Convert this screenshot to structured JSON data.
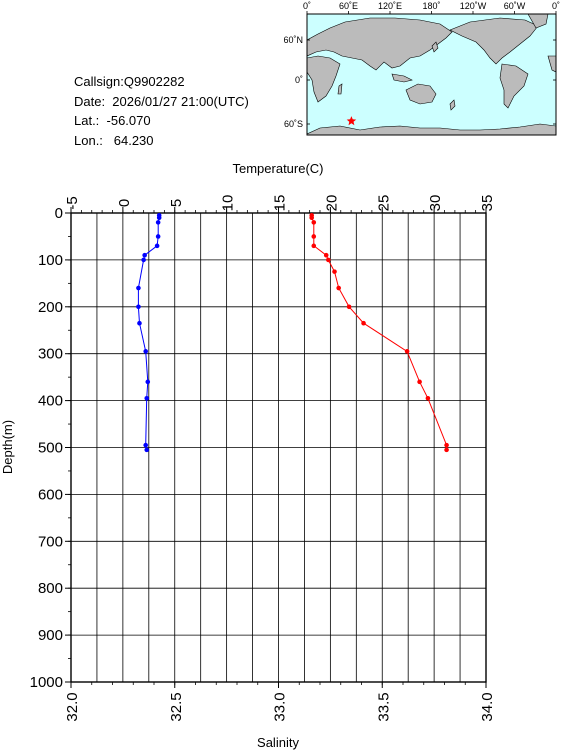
{
  "info": {
    "callsign": "Callsign:Q9902282",
    "date": "Date:  2026/01/27 21:00(UTC)",
    "lat": "Lat.:  -56.070",
    "lon": "Lon.:   64.230"
  },
  "map": {
    "top_labels": [
      "0˚",
      "60˚E",
      "120˚E",
      "180˚",
      "120˚W",
      "60˚W",
      "0˚"
    ],
    "side_labels": [
      "60˚N",
      "0˚",
      "60˚S"
    ],
    "ocean_color": "#ccffff",
    "land_color": "#bbbbbb",
    "marker": {
      "lat": -56.07,
      "lon": 64.23,
      "symbol": "star",
      "color": "#ff0000"
    }
  },
  "chart_data": {
    "type": "line",
    "top_axis": {
      "label": "Temperature(C)",
      "range": [
        -5,
        35
      ],
      "ticks": [
        "-5",
        "0",
        "5",
        "10",
        "15",
        "20",
        "25",
        "30",
        "35"
      ]
    },
    "bottom_axis": {
      "label": "Salinity",
      "range": [
        32.0,
        34.0
      ],
      "ticks": [
        "32.0",
        "32.5",
        "33.0",
        "33.5",
        "34.0"
      ]
    },
    "y_axis": {
      "label": "Depth(m)",
      "range": [
        0,
        1000
      ],
      "inverted": true,
      "ticks": [
        "0",
        "100",
        "200",
        "300",
        "400",
        "500",
        "600",
        "700",
        "800",
        "900",
        "1000"
      ]
    },
    "grid": true,
    "series": [
      {
        "axis": "top",
        "color": "#0000ff",
        "points": [
          [
            3.5,
            5
          ],
          [
            3.5,
            10
          ],
          [
            3.4,
            20
          ],
          [
            3.4,
            50
          ],
          [
            3.3,
            70
          ],
          [
            2.1,
            90
          ],
          [
            2.0,
            100
          ],
          [
            1.5,
            160
          ],
          [
            1.5,
            200
          ],
          [
            1.6,
            235
          ],
          [
            2.2,
            295
          ],
          [
            2.4,
            360
          ],
          [
            2.3,
            395
          ],
          [
            2.2,
            495
          ],
          [
            2.3,
            505
          ]
        ]
      },
      {
        "axis": "bottom",
        "color": "#ff0000",
        "points": [
          [
            33.16,
            5
          ],
          [
            33.16,
            10
          ],
          [
            33.17,
            20
          ],
          [
            33.17,
            50
          ],
          [
            33.17,
            70
          ],
          [
            33.23,
            90
          ],
          [
            33.24,
            100
          ],
          [
            33.27,
            125
          ],
          [
            33.29,
            160
          ],
          [
            33.34,
            200
          ],
          [
            33.41,
            235
          ],
          [
            33.62,
            295
          ],
          [
            33.68,
            360
          ],
          [
            33.72,
            395
          ],
          [
            33.81,
            495
          ],
          [
            33.81,
            505
          ]
        ]
      }
    ]
  }
}
